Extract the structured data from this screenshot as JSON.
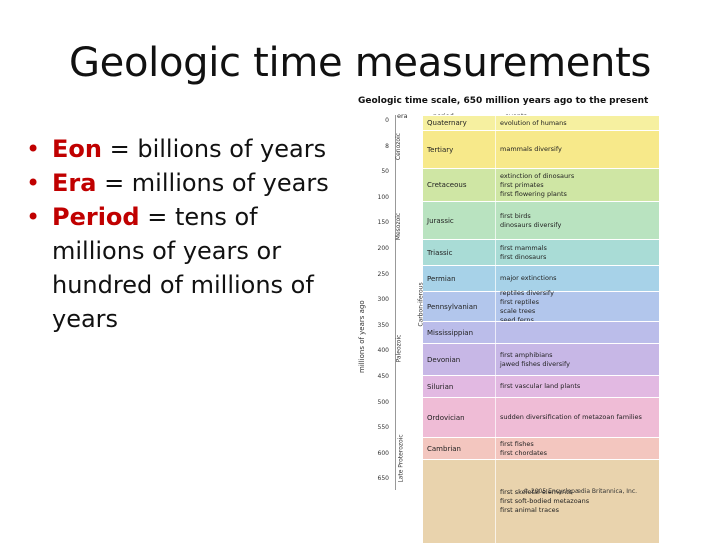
{
  "slide": {
    "title": "Geologic time measurements",
    "bullets": [
      {
        "term": "Eon",
        "text": " = billions of years"
      },
      {
        "term": "Era",
        "text": " = millions of years"
      },
      {
        "term": "Period",
        "text": " = tens of millions of years or hundred of millions of years"
      }
    ]
  },
  "figure": {
    "title": "Geologic time scale, 650 million years ago to the present",
    "y_axis_label": "millions of years ago",
    "col_era": "era",
    "col_period": "period",
    "col_events": "events",
    "ticks": [
      "0",
      "8",
      "50",
      "100",
      "150",
      "200",
      "250",
      "300",
      "350",
      "400",
      "450",
      "500",
      "550",
      "600",
      "650"
    ],
    "eras": [
      "Cenozoic",
      "Mesozoic",
      "Paleozoic",
      "Late Proterozoic"
    ],
    "carbon_label": "Carbon-iferous",
    "copyright": "© 2005 Encyclopædia Britannica, Inc.",
    "periods": [
      {
        "name": "Quaternary",
        "events": [
          "evolution of humans"
        ],
        "color": "#f6f0a0"
      },
      {
        "name": "Tertiary",
        "events": [
          "mammals diversify"
        ],
        "color": "#f7e98a"
      },
      {
        "name": "Cretaceous",
        "events": [
          "extinction of dinosaurs",
          "first primates",
          "first flowering plants"
        ],
        "color": "#cfe6a4"
      },
      {
        "name": "Jurassic",
        "events": [
          "first birds",
          "dinosaurs diversify"
        ],
        "color": "#b9e3c0"
      },
      {
        "name": "Triassic",
        "events": [
          "first mammals",
          "first dinosaurs"
        ],
        "color": "#a9dcd6"
      },
      {
        "name": "Permian",
        "events": [
          "major extinctions"
        ],
        "color": "#a7d2e8"
      },
      {
        "name": "Pennsylvanian",
        "events": [
          "reptiles diversify",
          "first reptiles",
          "scale trees",
          "seed ferns"
        ],
        "color": "#b2c6ec"
      },
      {
        "name": "Mississippian",
        "events": [],
        "color": "#bbbdea"
      },
      {
        "name": "Devonian",
        "events": [
          "first amphibians",
          "jawed fishes diversify"
        ],
        "color": "#c7b7e6"
      },
      {
        "name": "Silurian",
        "events": [
          "first vascular land plants"
        ],
        "color": "#e2b9e2"
      },
      {
        "name": "Ordovician",
        "events": [
          "sudden diversification of metazoan families"
        ],
        "color": "#efbcd6"
      },
      {
        "name": "Cambrian",
        "events": [
          "first fishes",
          "first chordates"
        ],
        "color": "#f3c6bf"
      },
      {
        "name": "",
        "events": [
          "first skeletal elements",
          "first soft-bodied metazoans",
          "first animal traces"
        ],
        "color": "#e9d3ad"
      }
    ]
  }
}
